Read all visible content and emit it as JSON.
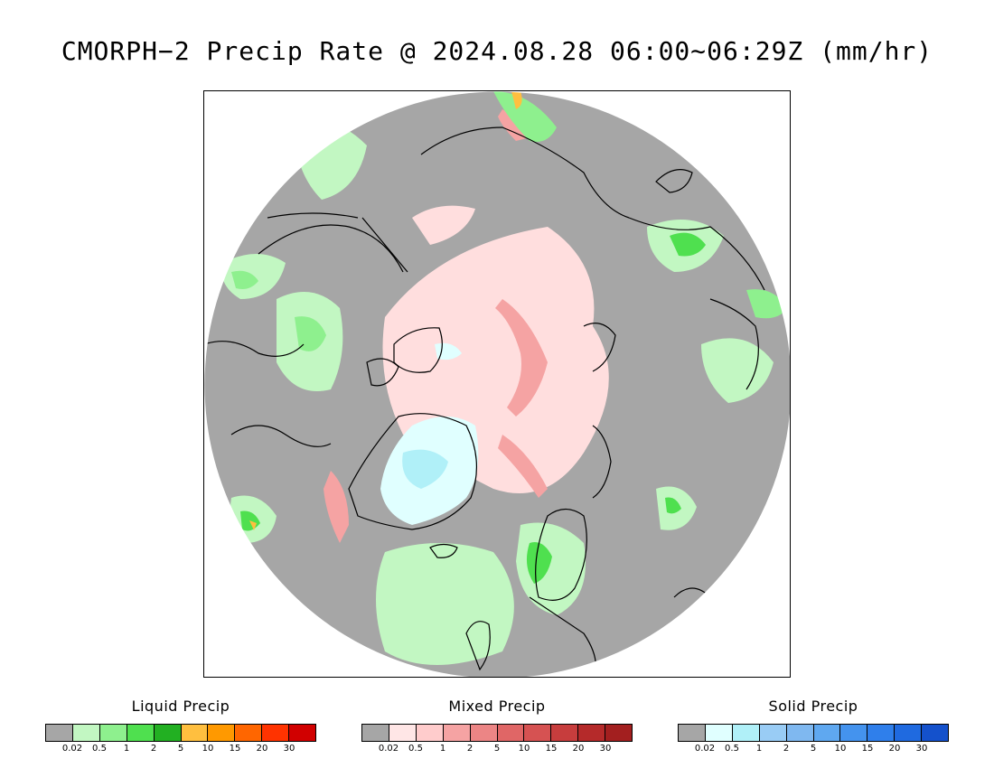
{
  "title": "CMORPH−2 Precip Rate @ 2024.08.28 06:00∼06:29Z (mm/hr)",
  "map": {
    "background_color": "#a6a6a6",
    "land_outline_color": "#000000"
  },
  "legends": [
    {
      "title": "Liquid Precip",
      "colors": [
        "#a6a6a6",
        "#c2f7c2",
        "#8ef08e",
        "#4fe04f",
        "#22b022",
        "#ffbf3f",
        "#ff9900",
        "#ff6600",
        "#ff3300",
        "#d10000"
      ],
      "ticks": [
        "0.02",
        "0.5",
        "1",
        "2",
        "5",
        "10",
        "15",
        "20",
        "30"
      ]
    },
    {
      "title": "Mixed Precip",
      "colors": [
        "#a6a6a6",
        "#ffe6e6",
        "#ffcccc",
        "#f5a3a3",
        "#ec8585",
        "#e06666",
        "#d65252",
        "#c73d3d",
        "#b52a2a",
        "#a31f1f"
      ],
      "ticks": [
        "0.02",
        "0.5",
        "1",
        "2",
        "5",
        "10",
        "15",
        "20",
        "30"
      ]
    },
    {
      "title": "Solid Precip",
      "colors": [
        "#a6a6a6",
        "#e0ffff",
        "#b0f0f8",
        "#99ccf5",
        "#7fb8f0",
        "#5fa8f0",
        "#4493ee",
        "#2f7feb",
        "#1f6ae0",
        "#1451cc"
      ],
      "ticks": [
        "0.02",
        "0.5",
        "1",
        "2",
        "5",
        "10",
        "15",
        "20",
        "30"
      ]
    }
  ]
}
